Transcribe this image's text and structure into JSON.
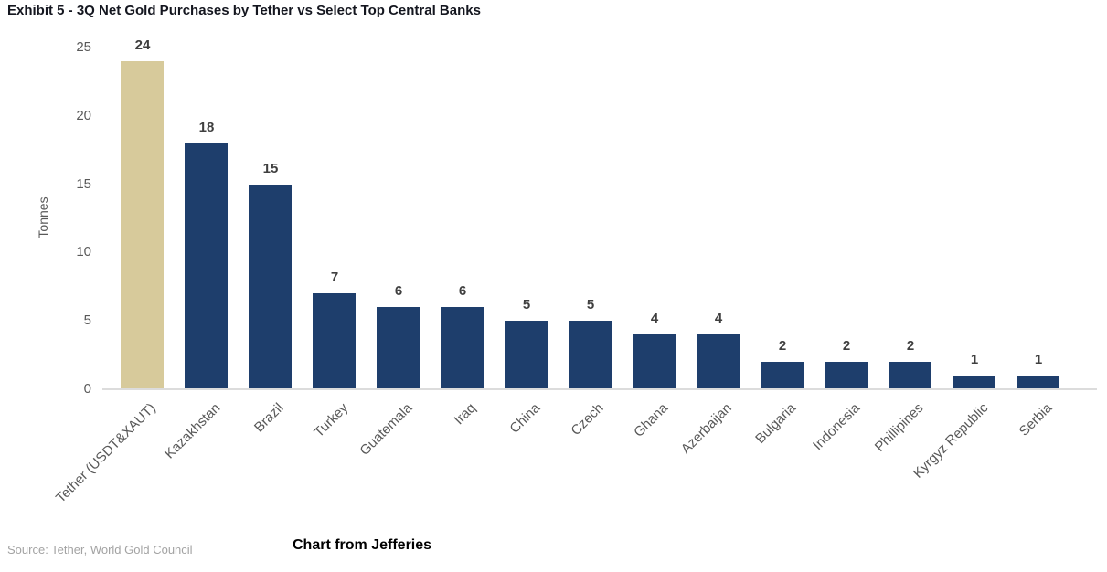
{
  "page": {
    "title": "Exhibit 5 - 3Q Net Gold Purchases by Tether vs Select Top Central Banks",
    "source": "Source: Tether, World Gold Council",
    "caption": "Chart from Jefferies"
  },
  "colors": {
    "tether_bar": "#d7ca9b",
    "bank_bar": "#1e3e6c",
    "title_text": "#14161f",
    "value_label_text": "#3f3f3f",
    "axis_text": "#595959",
    "source_text": "#a3a3a3",
    "baseline": "#dcdcdc"
  },
  "chart_data": {
    "type": "bar",
    "title": "Exhibit 5 - 3Q Net Gold Purchases by Tether vs Select Top Central Banks",
    "xlabel": "",
    "ylabel": "Tonnes",
    "ylim": [
      0,
      25
    ],
    "y_ticks": [
      0,
      5,
      10,
      15,
      20,
      25
    ],
    "grid": false,
    "legend": "none",
    "categories": [
      "Tether (USDT&XAUT)",
      "Kazakhstan",
      "Brazil",
      "Turkey",
      "Guatemala",
      "Iraq",
      "China",
      "Czech",
      "Ghana",
      "Azerbaijan",
      "Bulgaria",
      "Indonesia",
      "Phillipines",
      "Kyrgyz Republic",
      "Serbia"
    ],
    "values": [
      24,
      18,
      15,
      7,
      6,
      6,
      5,
      5,
      4,
      4,
      2,
      2,
      2,
      1,
      1
    ],
    "data_labels": [
      "24",
      "18",
      "15",
      "7",
      "6",
      "6",
      "5",
      "5",
      "4",
      "4",
      "2",
      "2",
      "2",
      "1",
      "1"
    ],
    "highlight_category": "Tether (USDT&XAUT)",
    "highlight_index": 0
  }
}
